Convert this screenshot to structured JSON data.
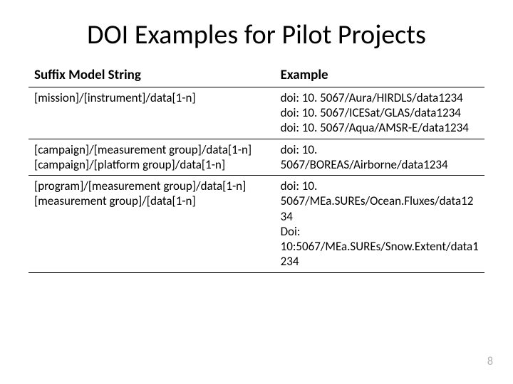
{
  "title": "DOI Examples for Pilot Projects",
  "table": {
    "columns": [
      "Suffix Model String",
      "Example"
    ],
    "rows": [
      {
        "model": "[mission]/[instrument]/data[1-n]",
        "example": "doi: 10. 5067/Aura/HIRDLS/data1234\ndoi: 10. 5067/ICESat/GLAS/data1234\ndoi: 10. 5067/Aqua/AMSR-E/data1234"
      },
      {
        "model": "[campaign]/[measurement group]/data[1-n]\n[campaign]/[platform group]/data[1-n]",
        "example": "doi: 10. 5067/BOREAS/Airborne/data1234"
      },
      {
        "model": "[program]/[measurement group]/data[1-n]\n[measurement group]/[data[1-n]",
        "example": "doi: 10. 5067/MEa.SUREs/Ocean.Fluxes/data1234\nDoi: 10:5067/MEa.SUREs/Snow.Extent/data1234"
      }
    ],
    "header_fontsize": 19,
    "cell_fontsize": 17,
    "border_color": "#000000",
    "background_color": "#ffffff",
    "col_widths_pct": [
      54,
      46
    ]
  },
  "page_number": "8",
  "colors": {
    "text": "#000000",
    "page_num": "#b0b0b0",
    "background": "#ffffff"
  }
}
